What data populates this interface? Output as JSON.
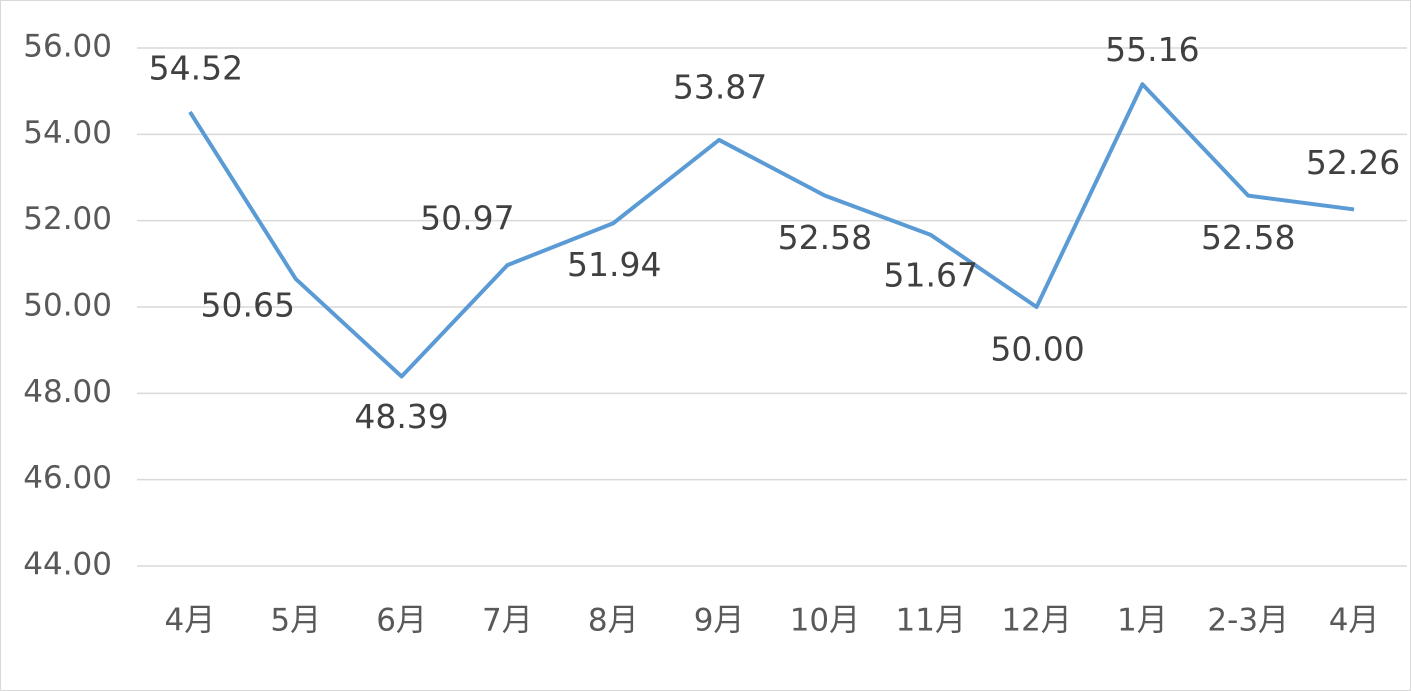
{
  "chart_data": {
    "type": "line",
    "categories": [
      "4月",
      "5月",
      "6月",
      "7月",
      "8月",
      "9月",
      "10月",
      "11月",
      "12月",
      "1月",
      "2-3月",
      "4月"
    ],
    "series": [
      {
        "color": "#5b9bd5",
        "values": [
          54.52,
          50.65,
          48.39,
          50.97,
          51.94,
          53.87,
          52.58,
          51.67,
          50.0,
          55.16,
          52.58,
          52.26
        ],
        "value_labels": [
          "54.52",
          "50.65",
          "48.39",
          "50.97",
          "51.94",
          "53.87",
          "52.58",
          "51.67",
          "50.00",
          "55.16",
          "52.58",
          "52.26"
        ]
      }
    ],
    "ylim": [
      44,
      56
    ],
    "yticks": [
      {
        "value": 44,
        "label": "44.00"
      },
      {
        "value": 46,
        "label": "46.00"
      },
      {
        "value": 48,
        "label": "48.00"
      },
      {
        "value": 50,
        "label": "50.00"
      },
      {
        "value": 52,
        "label": "52.00"
      },
      {
        "value": 54,
        "label": "54.00"
      },
      {
        "value": 56,
        "label": "56.00"
      }
    ],
    "grid": true
  }
}
